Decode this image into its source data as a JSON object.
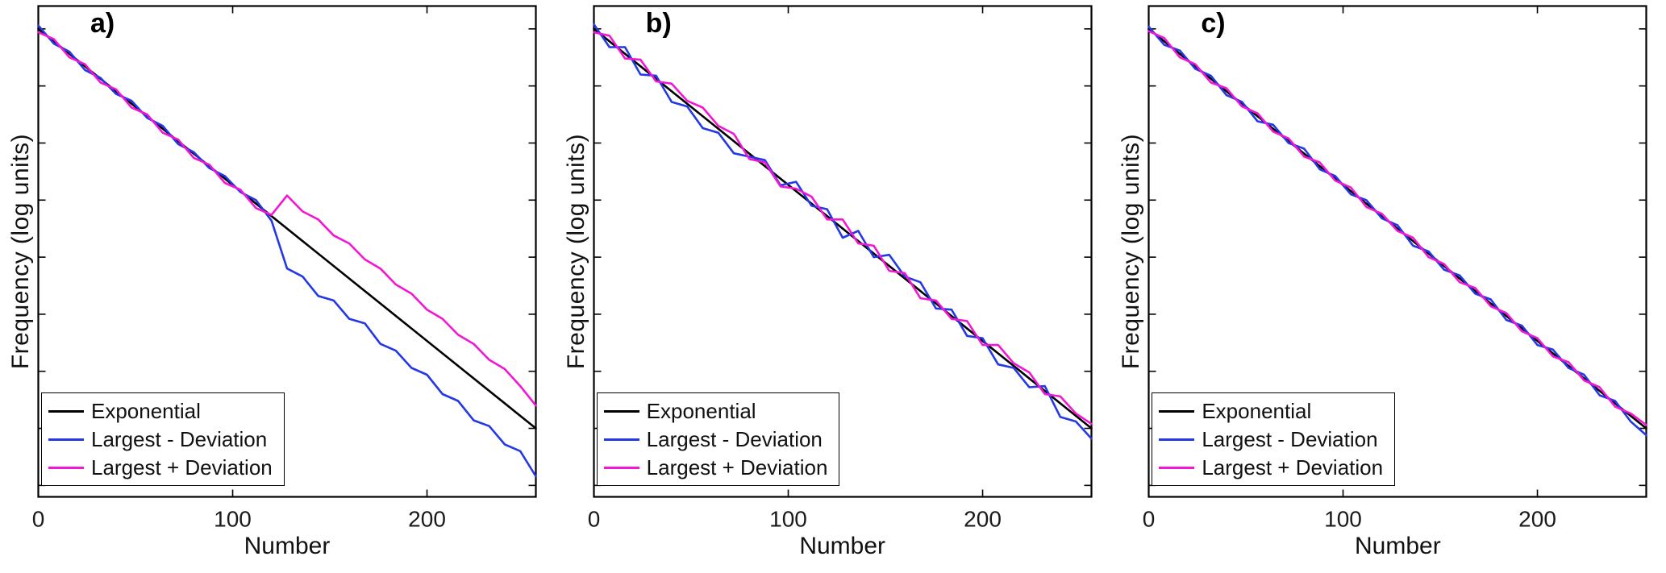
{
  "figure": {
    "background": "#ffffff"
  },
  "chart_data": [
    {
      "type": "line",
      "panel_label": "a)",
      "xlabel": "Number",
      "ylabel": "Frequency (log units)",
      "xlim": [
        0,
        256
      ],
      "ylim": [
        0.4,
        4.7
      ],
      "xticks": [
        0,
        100,
        200
      ],
      "yticks": [
        0.5,
        1,
        1.5,
        2,
        2.5,
        3,
        3.5,
        4,
        4.5
      ],
      "x_step": 8,
      "legend_position": "bottom-left",
      "series": [
        {
          "name": "Exponential",
          "color": "#000000",
          "x": [
            0,
            256
          ],
          "y": [
            4.5,
            1.0
          ]
        },
        {
          "name": "Largest - Deviation",
          "color": "#2338e6",
          "y": [
            4.53,
            4.37,
            4.3,
            4.14,
            4.07,
            3.93,
            3.87,
            3.72,
            3.65,
            3.49,
            3.42,
            3.28,
            3.21,
            3.07,
            3.0,
            2.82,
            2.4,
            2.33,
            2.16,
            2.12,
            1.96,
            1.92,
            1.74,
            1.68,
            1.53,
            1.47,
            1.3,
            1.24,
            1.07,
            1.02,
            0.86,
            0.8,
            0.58
          ]
        },
        {
          "name": "Largest + Deviation",
          "color": "#f316d3",
          "y": [
            4.47,
            4.41,
            4.25,
            4.19,
            4.03,
            3.97,
            3.81,
            3.75,
            3.59,
            3.53,
            3.37,
            3.31,
            3.15,
            3.09,
            2.93,
            2.87,
            3.04,
            2.9,
            2.83,
            2.69,
            2.62,
            2.48,
            2.4,
            2.26,
            2.18,
            2.04,
            1.96,
            1.82,
            1.74,
            1.6,
            1.52,
            1.37,
            1.2
          ]
        }
      ]
    },
    {
      "type": "line",
      "panel_label": "b)",
      "xlabel": "Number",
      "ylabel": "Frequency (log units)",
      "xlim": [
        0,
        256
      ],
      "ylim": [
        0.4,
        4.7
      ],
      "xticks": [
        0,
        100,
        200
      ],
      "yticks": [
        0.5,
        1,
        1.5,
        2,
        2.5,
        3,
        3.5,
        4,
        4.5
      ],
      "x_step": 8,
      "legend_position": "bottom-left",
      "series": [
        {
          "name": "Exponential",
          "color": "#000000",
          "x": [
            0,
            256
          ],
          "y": [
            4.5,
            1.0
          ]
        },
        {
          "name": "Largest - Deviation",
          "color": "#2338e6",
          "y": [
            4.54,
            4.34,
            4.34,
            4.1,
            4.09,
            3.86,
            3.82,
            3.63,
            3.59,
            3.41,
            3.38,
            3.35,
            3.13,
            3.16,
            2.95,
            2.92,
            2.67,
            2.73,
            2.5,
            2.52,
            2.33,
            2.28,
            2.05,
            2.04,
            1.81,
            1.79,
            1.56,
            1.53,
            1.36,
            1.37,
            1.1,
            1.06,
            0.91
          ]
        },
        {
          "name": "Largest + Deviation",
          "color": "#f316d3",
          "y": [
            4.47,
            4.44,
            4.24,
            4.23,
            4.04,
            4.02,
            3.87,
            3.81,
            3.65,
            3.58,
            3.36,
            3.33,
            3.12,
            3.1,
            3.03,
            2.83,
            2.83,
            2.62,
            2.6,
            2.38,
            2.36,
            2.14,
            2.12,
            1.96,
            1.94,
            1.73,
            1.73,
            1.57,
            1.49,
            1.3,
            1.28,
            1.13,
            1.04
          ]
        }
      ]
    },
    {
      "type": "line",
      "panel_label": "c)",
      "xlabel": "Number",
      "ylabel": "Frequency (log units)",
      "xlim": [
        0,
        256
      ],
      "ylim": [
        0.4,
        4.7
      ],
      "xticks": [
        0,
        100,
        200
      ],
      "yticks": [
        0.5,
        1,
        1.5,
        2,
        2.5,
        3,
        3.5,
        4,
        4.5
      ],
      "x_step": 8,
      "legend_position": "bottom-left",
      "series": [
        {
          "name": "Exponential",
          "color": "#000000",
          "x": [
            0,
            256
          ],
          "y": [
            4.5,
            1.0
          ]
        },
        {
          "name": "Largest - Deviation",
          "color": "#2338e6",
          "y": [
            4.52,
            4.36,
            4.31,
            4.15,
            4.09,
            3.92,
            3.86,
            3.69,
            3.66,
            3.5,
            3.45,
            3.27,
            3.21,
            3.05,
            3.0,
            2.84,
            2.78,
            2.6,
            2.55,
            2.39,
            2.34,
            2.18,
            2.13,
            1.95,
            1.9,
            1.73,
            1.69,
            1.53,
            1.47,
            1.29,
            1.24,
            1.06,
            0.94
          ]
        },
        {
          "name": "Largest + Deviation",
          "color": "#f316d3",
          "y": [
            4.48,
            4.42,
            4.25,
            4.19,
            4.03,
            3.98,
            3.82,
            3.76,
            3.6,
            3.54,
            3.38,
            3.33,
            3.17,
            3.11,
            2.94,
            2.88,
            2.73,
            2.67,
            2.5,
            2.44,
            2.28,
            2.23,
            2.07,
            2.01,
            1.85,
            1.79,
            1.63,
            1.58,
            1.42,
            1.36,
            1.19,
            1.13,
            1.03
          ]
        }
      ]
    }
  ]
}
